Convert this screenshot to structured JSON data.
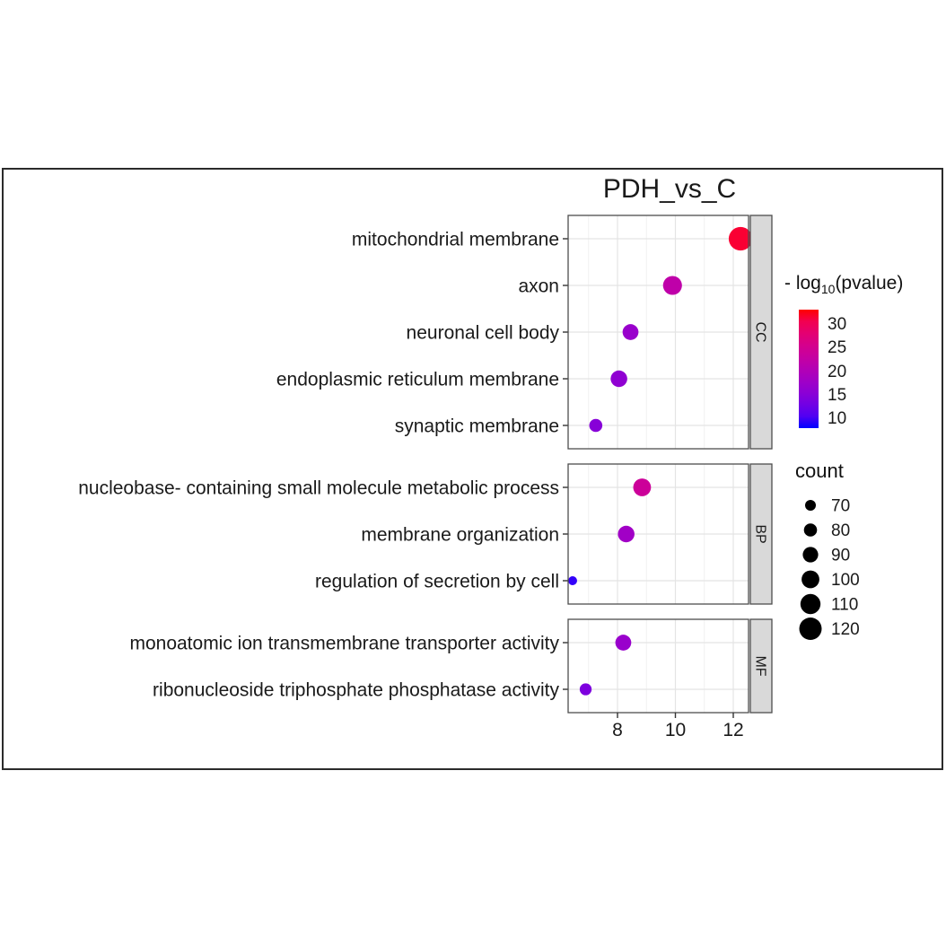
{
  "title": "PDH_vs_C",
  "chart_data": {
    "type": "scatter",
    "title": "PDH_vs_C",
    "xlabel": "",
    "ylabel": "",
    "x_ticks": [
      8,
      10,
      12
    ],
    "x_minor_ticks": [
      7,
      9,
      11
    ],
    "xlim": [
      6.3,
      12.55
    ],
    "grid": true,
    "legend_position": "right",
    "facets": [
      {
        "label": "CC",
        "rows": [
          {
            "term": "mitochondrial membrane",
            "x": 12.25,
            "count": 125,
            "neg_log10_pvalue": 32
          },
          {
            "term": "axon",
            "x": 9.9,
            "count": 105,
            "neg_log10_pvalue": 22
          },
          {
            "term": "neuronal cell body",
            "x": 8.45,
            "count": 92,
            "neg_log10_pvalue": 17
          },
          {
            "term": "endoplasmic reticulum membrane",
            "x": 8.05,
            "count": 95,
            "neg_log10_pvalue": 16
          },
          {
            "term": "synaptic membrane",
            "x": 7.25,
            "count": 80,
            "neg_log10_pvalue": 15
          }
        ]
      },
      {
        "label": "BP",
        "rows": [
          {
            "term": "nucleobase- containing small molecule metabolic process",
            "x": 8.85,
            "count": 100,
            "neg_log10_pvalue": 24
          },
          {
            "term": "membrane organization",
            "x": 8.3,
            "count": 95,
            "neg_log10_pvalue": 18
          },
          {
            "term": "regulation of secretion by cell",
            "x": 6.45,
            "count": 62,
            "neg_log10_pvalue": 9
          }
        ]
      },
      {
        "label": "MF",
        "rows": [
          {
            "term": "monoatomic ion transmembrane transporter activity",
            "x": 8.2,
            "count": 92,
            "neg_log10_pvalue": 17
          },
          {
            "term": "ribonucleoside triphosphate phosphatase activity",
            "x": 6.9,
            "count": 75,
            "neg_log10_pvalue": 14
          }
        ]
      }
    ],
    "color_legend": {
      "title_prefix": "- log",
      "title_sub": "10",
      "title_suffix": "(pvalue)",
      "ticks": [
        30,
        25,
        20,
        15,
        10
      ],
      "domain": [
        8,
        33
      ],
      "low_color": "#0000FF",
      "high_color": "#FF0000"
    },
    "size_legend": {
      "title": "count",
      "ticks": [
        70,
        80,
        90,
        100,
        110,
        120
      ]
    },
    "colors": {
      "panel_bg": "#ffffff",
      "panel_border": "#4d4d4d",
      "strip_bg": "#d9d9d9",
      "grid_major": "#e4e4e4",
      "grid_minor": "#f1f1f1",
      "axis_text": "#1a1a1a"
    }
  }
}
